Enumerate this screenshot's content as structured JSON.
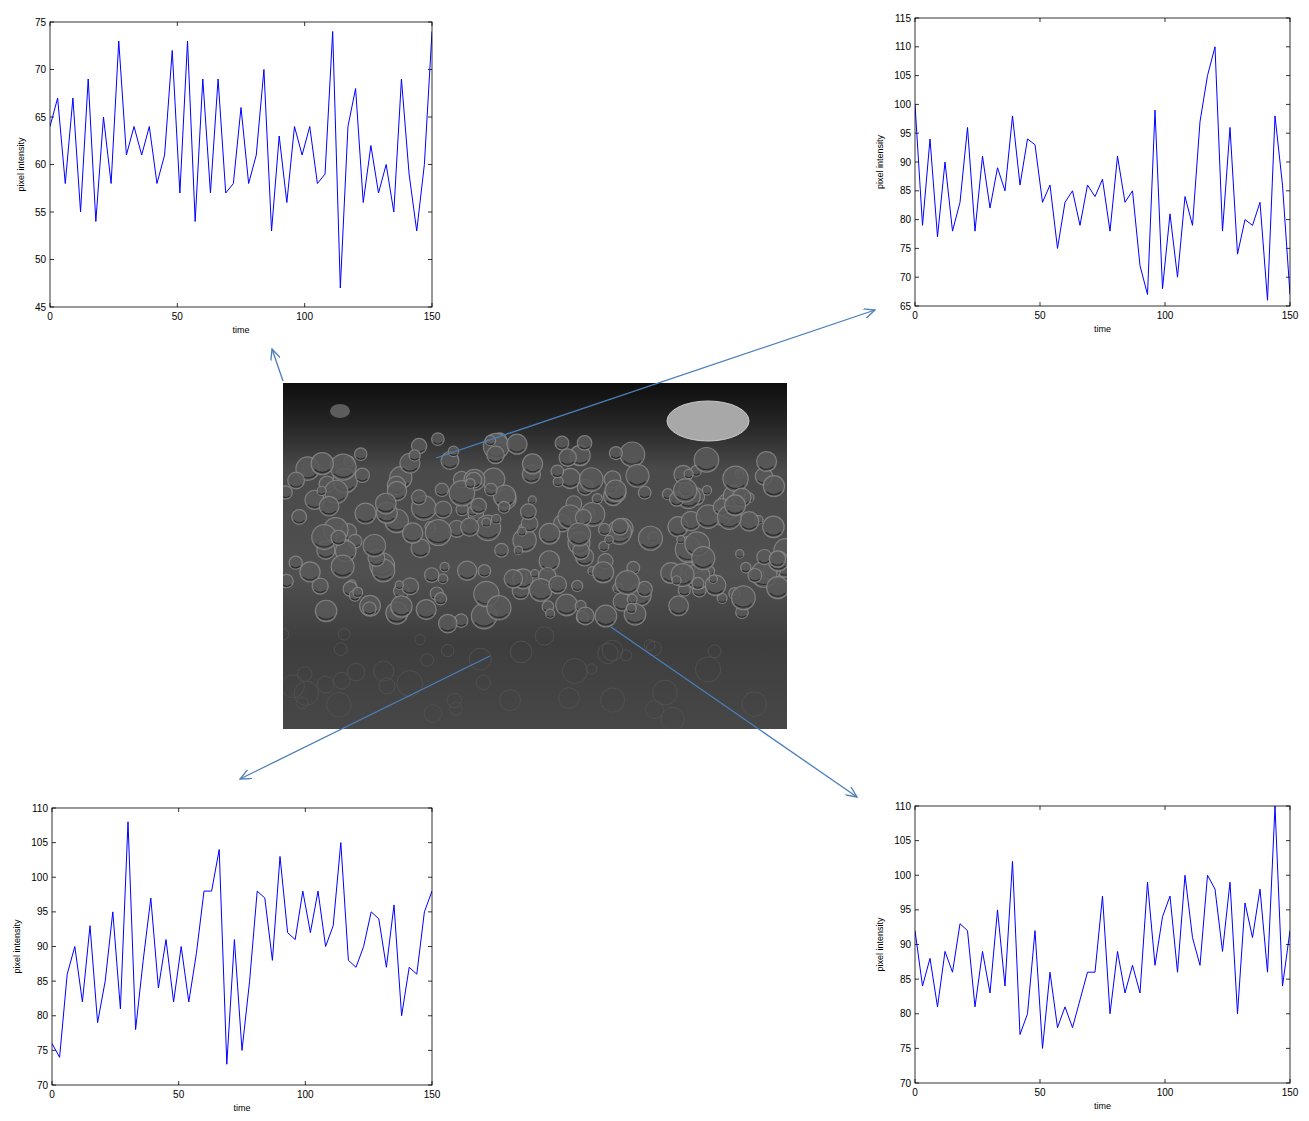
{
  "chart_data": [
    {
      "type": "line",
      "x_label": "time",
      "y_label": "pixel intensity",
      "color": "#0000ff",
      "xlim": [
        0,
        150
      ],
      "xticks": [
        0,
        50,
        100,
        150
      ],
      "ylim": [
        45,
        75
      ],
      "yticks": [
        45,
        50,
        55,
        60,
        65,
        70,
        75
      ],
      "x": [
        0,
        3,
        6,
        9,
        12,
        15,
        18,
        21,
        24,
        27,
        30,
        33,
        36,
        39,
        42,
        45,
        48,
        51,
        54,
        57,
        60,
        63,
        66,
        69,
        72,
        75,
        78,
        81,
        84,
        87,
        90,
        93,
        96,
        99,
        102,
        105,
        108,
        111,
        114,
        117,
        120,
        123,
        126,
        129,
        132,
        135,
        138,
        141,
        144,
        147,
        150
      ],
      "values": [
        64,
        67,
        58,
        67,
        55,
        69,
        54,
        65,
        58,
        73,
        61,
        64,
        61,
        64,
        58,
        61,
        72,
        57,
        73,
        54,
        69,
        57,
        69,
        57,
        58,
        66,
        58,
        61,
        70,
        53,
        63,
        56,
        64,
        61,
        64,
        58,
        59,
        74,
        47,
        64,
        68,
        56,
        62,
        57,
        60,
        55,
        69,
        59,
        53,
        60,
        74
      ]
    },
    {
      "type": "line",
      "x_label": "time",
      "y_label": "pixel intensity",
      "color": "#0000ff",
      "xlim": [
        0,
        150
      ],
      "xticks": [
        0,
        50,
        100,
        150
      ],
      "ylim": [
        65,
        115
      ],
      "yticks": [
        65,
        70,
        75,
        80,
        85,
        90,
        95,
        100,
        105,
        110,
        115
      ],
      "x": [
        0,
        3,
        6,
        9,
        12,
        15,
        18,
        21,
        24,
        27,
        30,
        33,
        36,
        39,
        42,
        45,
        48,
        51,
        54,
        57,
        60,
        63,
        66,
        69,
        72,
        75,
        78,
        81,
        84,
        87,
        90,
        93,
        96,
        99,
        102,
        105,
        108,
        111,
        114,
        117,
        120,
        123,
        126,
        129,
        132,
        135,
        138,
        141,
        144,
        147,
        150
      ],
      "values": [
        100,
        79,
        94,
        77,
        90,
        78,
        83,
        96,
        78,
        91,
        82,
        89,
        85,
        98,
        86,
        94,
        93,
        83,
        86,
        75,
        83,
        85,
        79,
        86,
        84,
        87,
        78,
        91,
        83,
        85,
        72,
        67,
        99,
        68,
        81,
        70,
        84,
        79,
        97,
        105,
        110,
        78,
        96,
        74,
        80,
        79,
        83,
        66,
        98,
        86,
        67
      ]
    },
    {
      "type": "line",
      "x_label": "time",
      "y_label": "pixel intensity",
      "color": "#0000ff",
      "xlim": [
        0,
        150
      ],
      "xticks": [
        0,
        50,
        100,
        150
      ],
      "ylim": [
        70,
        110
      ],
      "yticks": [
        70,
        75,
        80,
        85,
        90,
        95,
        100,
        105,
        110
      ],
      "x": [
        0,
        3,
        6,
        9,
        12,
        15,
        18,
        21,
        24,
        27,
        30,
        33,
        36,
        39,
        42,
        45,
        48,
        51,
        54,
        57,
        60,
        63,
        66,
        69,
        72,
        75,
        78,
        81,
        84,
        87,
        90,
        93,
        96,
        99,
        102,
        105,
        108,
        111,
        114,
        117,
        120,
        123,
        126,
        129,
        132,
        135,
        138,
        141,
        144,
        147,
        150
      ],
      "values": [
        76,
        74,
        86,
        90,
        82,
        93,
        79,
        85,
        95,
        81,
        108,
        78,
        88,
        97,
        84,
        91,
        82,
        90,
        82,
        89,
        98,
        98,
        104,
        73,
        91,
        75,
        85,
        98,
        97,
        88,
        103,
        92,
        91,
        98,
        92,
        98,
        90,
        93,
        105,
        88,
        87,
        90,
        95,
        94,
        87,
        96,
        80,
        87,
        86,
        95,
        98
      ]
    },
    {
      "type": "line",
      "x_label": "time",
      "y_label": "pixel intensity",
      "color": "#0000ff",
      "xlim": [
        0,
        150
      ],
      "xticks": [
        0,
        50,
        100,
        150
      ],
      "ylim": [
        70,
        110
      ],
      "yticks": [
        70,
        75,
        80,
        85,
        90,
        95,
        100,
        105,
        110
      ],
      "x": [
        0,
        3,
        6,
        9,
        12,
        15,
        18,
        21,
        24,
        27,
        30,
        33,
        36,
        39,
        42,
        45,
        48,
        51,
        54,
        57,
        60,
        63,
        66,
        69,
        72,
        75,
        78,
        81,
        84,
        87,
        90,
        93,
        96,
        99,
        102,
        105,
        108,
        111,
        114,
        117,
        120,
        123,
        126,
        129,
        132,
        135,
        138,
        141,
        144,
        147,
        150
      ],
      "values": [
        92,
        84,
        88,
        81,
        89,
        86,
        93,
        92,
        81,
        89,
        83,
        95,
        84,
        102,
        77,
        80,
        92,
        75,
        86,
        78,
        81,
        78,
        82,
        86,
        86,
        97,
        80,
        89,
        83,
        87,
        83,
        99,
        87,
        94,
        97,
        86,
        100,
        91,
        87,
        100,
        98,
        89,
        99,
        80,
        96,
        91,
        98,
        86,
        110,
        84,
        92
      ]
    }
  ]
}
